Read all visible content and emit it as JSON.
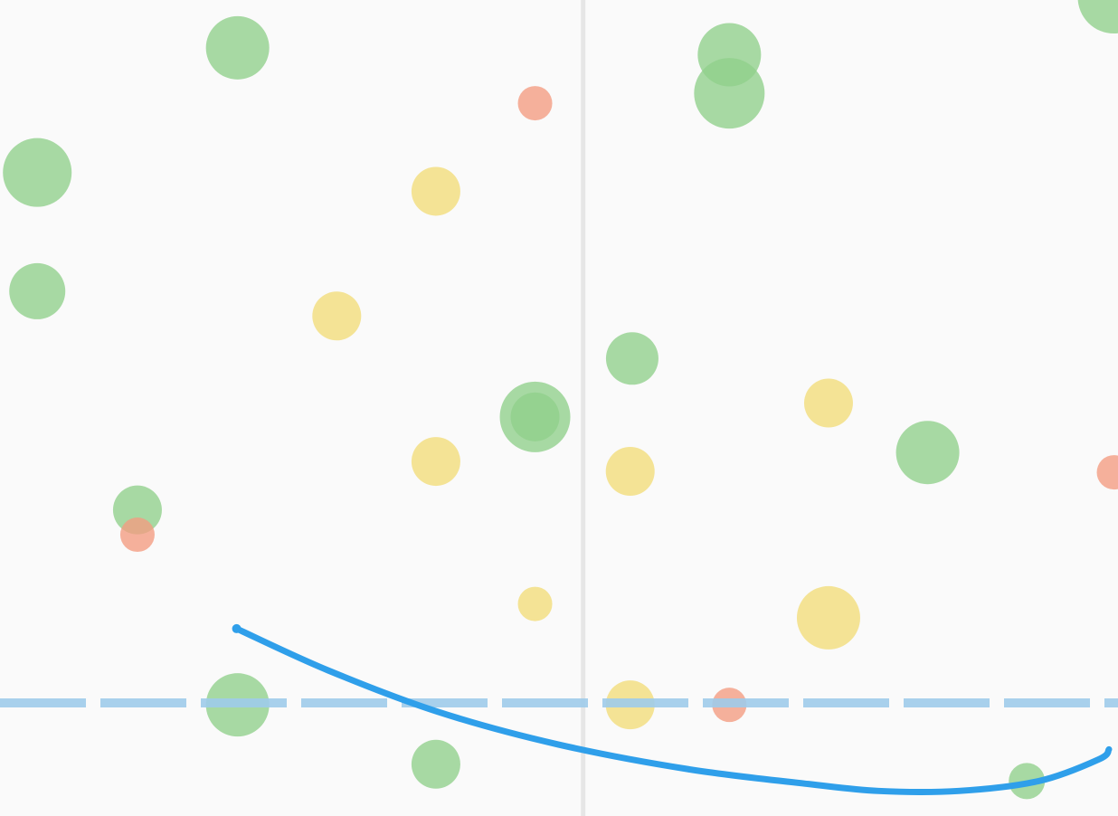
{
  "chart_data": {
    "type": "scatter",
    "x_range": [
      0,
      11
    ],
    "y_range": [
      0,
      8.1
    ],
    "grid": false,
    "legend": "none",
    "colors": {
      "background": "#fafafa",
      "divider": "#e6e6e6",
      "green": "#8fd08a",
      "yellow": "#f2dc78",
      "red": "#f49b80",
      "curve": "#2f9fea",
      "reference": "#9ecbea"
    },
    "vertical_divider_x": 5.75,
    "reference_line_y": 1.07,
    "series": [
      {
        "color": "green",
        "points": [
          {
            "x": 2.3,
            "y": 7.69,
            "size": 35
          },
          {
            "x": 0.3,
            "y": 6.43,
            "size": 38
          },
          {
            "x": 0.3,
            "y": 5.23,
            "size": 31
          },
          {
            "x": 1.3,
            "y": 3.02,
            "size": 27
          },
          {
            "x": 5.27,
            "y": 3.96,
            "size": 39
          },
          {
            "x": 5.27,
            "y": 3.96,
            "size": 27
          },
          {
            "x": 7.21,
            "y": 7.62,
            "size": 35
          },
          {
            "x": 7.21,
            "y": 7.23,
            "size": 39
          },
          {
            "x": 6.24,
            "y": 4.55,
            "size": 29
          },
          {
            "x": 9.19,
            "y": 3.6,
            "size": 35
          },
          {
            "x": 2.3,
            "y": 1.05,
            "size": 35
          },
          {
            "x": 4.28,
            "y": 0.45,
            "size": 27
          },
          {
            "x": 10.18,
            "y": 0.28,
            "size": 20
          },
          {
            "x": 11.05,
            "y": 8.2,
            "size": 40
          }
        ]
      },
      {
        "color": "yellow",
        "points": [
          {
            "x": 4.28,
            "y": 6.24,
            "size": 27
          },
          {
            "x": 3.29,
            "y": 4.98,
            "size": 27
          },
          {
            "x": 4.28,
            "y": 3.51,
            "size": 27
          },
          {
            "x": 6.22,
            "y": 3.41,
            "size": 27
          },
          {
            "x": 8.2,
            "y": 4.1,
            "size": 27
          },
          {
            "x": 5.27,
            "y": 2.07,
            "size": 19
          },
          {
            "x": 8.2,
            "y": 1.93,
            "size": 35
          },
          {
            "x": 6.22,
            "y": 1.05,
            "size": 27
          }
        ]
      },
      {
        "color": "red",
        "points": [
          {
            "x": 5.27,
            "y": 7.13,
            "size": 19
          },
          {
            "x": 1.3,
            "y": 2.77,
            "size": 19
          },
          {
            "x": 7.21,
            "y": 1.05,
            "size": 19
          },
          {
            "x": 11.05,
            "y": 3.4,
            "size": 19
          }
        ]
      }
    ],
    "trend_curve": {
      "color": "curve",
      "x": [
        2.29,
        3.2,
        4.3,
        5.5,
        6.8,
        8.0,
        8.7,
        9.5,
        10.3,
        10.9,
        11.0
      ],
      "y": [
        1.82,
        1.4,
        0.98,
        0.65,
        0.4,
        0.25,
        0.18,
        0.18,
        0.28,
        0.5,
        0.6
      ]
    }
  }
}
